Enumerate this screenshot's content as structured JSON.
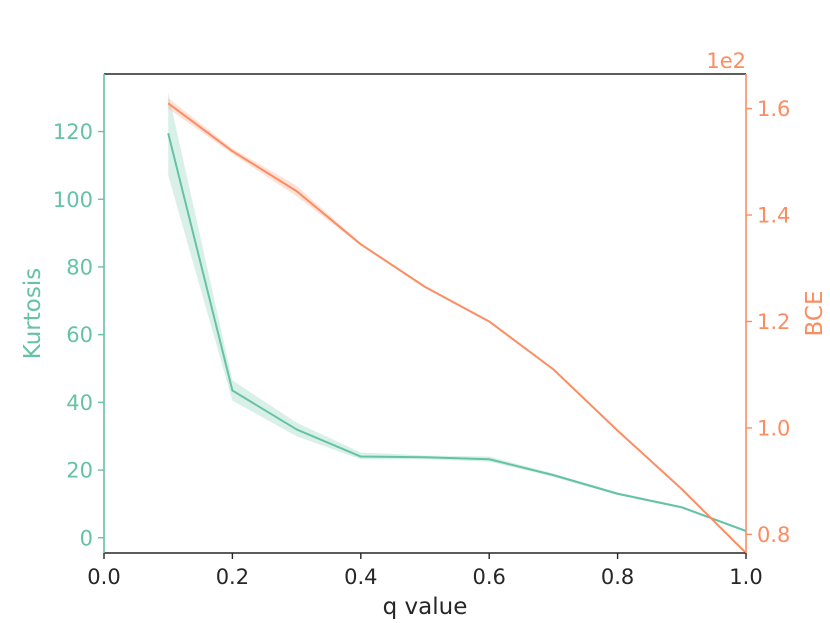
{
  "chart_data": {
    "type": "line",
    "xlabel": "q value",
    "x_ticks": [
      "0.0",
      "0.2",
      "0.4",
      "0.6",
      "0.8",
      "1.0"
    ],
    "x_tick_values": [
      0.0,
      0.2,
      0.4,
      0.6,
      0.8,
      1.0
    ],
    "xlim": [
      0.0,
      1.0
    ],
    "grid": false,
    "left_axis": {
      "label": "Kurtosis",
      "color": "#66c2a5",
      "ylim": [
        -4.5,
        137
      ],
      "ticks": [
        "0",
        "20",
        "40",
        "60",
        "80",
        "100",
        "120"
      ],
      "tick_values": [
        0,
        20,
        40,
        60,
        80,
        100,
        120
      ]
    },
    "right_axis": {
      "label": "BCE",
      "color": "#fc8d62",
      "scale_note": "1e2",
      "ylim": [
        0.765,
        1.665
      ],
      "ticks": [
        "0.8",
        "1.0",
        "1.2",
        "1.4",
        "1.6"
      ],
      "tick_values": [
        0.8,
        1.0,
        1.2,
        1.4,
        1.6
      ]
    },
    "series": [
      {
        "axis": "left",
        "color": "#66c2a5",
        "x": [
          0.1,
          0.2,
          0.3,
          0.4,
          0.5,
          0.6,
          0.7,
          0.8,
          0.9,
          1.0
        ],
        "y": [
          119.5,
          43.5,
          32.0,
          24.0,
          23.8,
          23.2,
          18.5,
          13.0,
          9.0,
          2.0
        ],
        "band_low": [
          107.0,
          40.5,
          30.0,
          23.2,
          23.2,
          22.5,
          18.0,
          12.6,
          8.6,
          1.8
        ],
        "band_high": [
          131.5,
          46.5,
          34.0,
          25.2,
          24.3,
          24.0,
          19.0,
          13.4,
          9.4,
          2.2
        ]
      },
      {
        "axis": "right",
        "color": "#fc8d62",
        "x": [
          0.1,
          0.2,
          0.3,
          0.4,
          0.5,
          0.6,
          0.7,
          0.8,
          0.9,
          1.0
        ],
        "y": [
          1.61,
          1.52,
          1.445,
          1.345,
          1.265,
          1.2,
          1.11,
          0.995,
          0.885,
          0.765
        ],
        "band_low": [
          1.6,
          1.515,
          1.435,
          1.343,
          1.263,
          1.198,
          1.108,
          0.993,
          0.883,
          0.763
        ],
        "band_high": [
          1.62,
          1.525,
          1.455,
          1.347,
          1.267,
          1.202,
          1.112,
          0.997,
          0.887,
          0.767
        ]
      }
    ]
  }
}
